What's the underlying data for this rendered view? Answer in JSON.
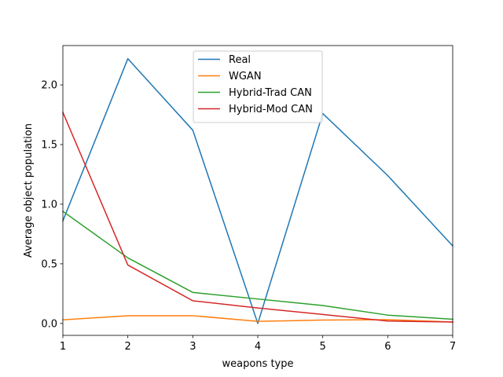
{
  "chart_data": {
    "type": "line",
    "xlabel": "weapons type",
    "ylabel": "Average object population",
    "xlim": [
      1,
      7
    ],
    "ylim": [
      -0.1,
      2.33
    ],
    "xticks": [
      1,
      2,
      3,
      4,
      5,
      6,
      7
    ],
    "yticks": [
      0.0,
      0.5,
      1.0,
      1.5,
      2.0
    ],
    "ytick_labels": [
      "0.0",
      "0.5",
      "1.0",
      "1.5",
      "2.0"
    ],
    "grid": false,
    "legend_position": "top-center",
    "x": [
      1,
      2,
      3,
      4,
      5,
      6,
      7
    ],
    "series": [
      {
        "name": "Real",
        "color": "#1f77b4",
        "values": [
          0.86,
          2.22,
          1.62,
          0.0,
          1.76,
          1.24,
          0.65
        ]
      },
      {
        "name": "WGAN",
        "color": "#ff7f0e",
        "values": [
          0.03,
          0.065,
          0.065,
          0.018,
          0.028,
          0.032,
          0.012
        ]
      },
      {
        "name": "Hybrid-Trad CAN",
        "color": "#2ca02c",
        "values": [
          0.94,
          0.55,
          0.26,
          0.205,
          0.15,
          0.07,
          0.035
        ]
      },
      {
        "name": "Hybrid-Mod CAN",
        "color": "#d62728",
        "values": [
          1.77,
          0.49,
          0.19,
          0.13,
          0.075,
          0.02,
          0.012
        ]
      }
    ]
  }
}
